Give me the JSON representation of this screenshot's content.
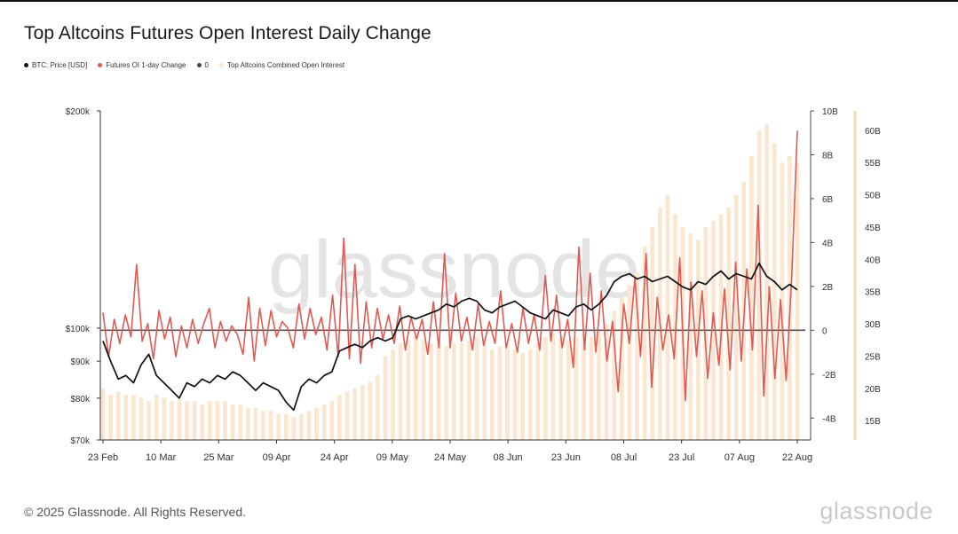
{
  "title": "Top Altcoins Futures Open Interest Daily Change",
  "legend": [
    {
      "label": "BTC: Price [USD]",
      "color": "#111111"
    },
    {
      "label": "Futures OI 1-day Change",
      "color": "#e05a55"
    },
    {
      "label": "0",
      "color": "#444444"
    },
    {
      "label": "Top Altcoins Combined Open Interest",
      "color": "#fbe6cf"
    }
  ],
  "watermark": "glassnode",
  "footer": "© 2025 Glassnode. All Rights Reserved.",
  "brand": "glassnode",
  "chart_data": {
    "type": "line",
    "title": "Top Altcoins Futures Open Interest Daily Change",
    "x_ticks": [
      "23 Feb",
      "10 Mar",
      "25 Mar",
      "09 Apr",
      "24 Apr",
      "09 May",
      "24 May",
      "08 Jun",
      "23 Jun",
      "08 Jul",
      "23 Jul",
      "07 Aug",
      "22 Aug"
    ],
    "y_left": {
      "label": "BTC: Price [USD]",
      "scale": "log",
      "ylim": [
        70000,
        200000
      ],
      "ticks": [
        "$70k",
        "$80k",
        "$90k",
        "$100k",
        "$200k"
      ],
      "tick_values": [
        70000,
        80000,
        90000,
        100000,
        200000
      ]
    },
    "y_right1": {
      "label": "Futures OI 1-day Change",
      "ylim": [
        -5,
        10
      ],
      "ticks": [
        "-4B",
        "-2B",
        "0",
        "2B",
        "4B",
        "6B",
        "8B",
        "10B"
      ],
      "tick_values": [
        -4,
        -2,
        0,
        2,
        4,
        6,
        8,
        10
      ]
    },
    "y_right2": {
      "label": "Top Altcoins Combined Open Interest",
      "ylim": [
        12,
        63
      ],
      "ticks": [
        "15B",
        "20B",
        "25B",
        "30B",
        "35B",
        "40B",
        "45B",
        "50B",
        "55B",
        "60B"
      ],
      "tick_values": [
        15,
        20,
        25,
        30,
        35,
        40,
        45,
        50,
        55,
        60
      ]
    },
    "series": [
      {
        "name": "BTC: Price [USD]",
        "axis": "left",
        "color": "#111111",
        "values": [
          96000,
          90000,
          85000,
          86000,
          84000,
          89000,
          92000,
          86000,
          84000,
          82000,
          80000,
          84000,
          83000,
          85000,
          84000,
          86000,
          85000,
          87000,
          86000,
          84000,
          82000,
          84000,
          83000,
          82000,
          79000,
          77000,
          83000,
          85000,
          84000,
          86000,
          87000,
          93000,
          94000,
          95000,
          94000,
          96000,
          97000,
          96000,
          97000,
          103000,
          104000,
          103000,
          104000,
          105000,
          106000,
          108000,
          107000,
          109000,
          110000,
          109000,
          106000,
          105000,
          107000,
          108000,
          109000,
          107000,
          105000,
          104000,
          103000,
          106000,
          105000,
          104000,
          107000,
          108000,
          106000,
          108000,
          111000,
          116000,
          118000,
          119000,
          117000,
          118000,
          116000,
          117000,
          118000,
          116000,
          114000,
          113000,
          116000,
          115000,
          118000,
          120000,
          117000,
          119000,
          118000,
          117000,
          123000,
          118000,
          116000,
          113000,
          115000,
          113000
        ]
      },
      {
        "name": "Futures OI 1-day Change",
        "axis": "right1",
        "color": "#e05a55",
        "values": [
          0.8,
          -1.2,
          0.5,
          -0.6,
          0.7,
          -0.3,
          3.0,
          -0.5,
          0.3,
          -1.3,
          0.9,
          -0.4,
          0.6,
          -1.2,
          0.2,
          -0.8,
          0.5,
          -0.6,
          0.3,
          1.0,
          -0.8,
          0.4,
          -0.5,
          0.2,
          -0.2,
          -1.1,
          1.5,
          -1.4,
          1.0,
          -0.7,
          0.9,
          -0.3,
          0.4,
          0.1,
          -0.8,
          1.2,
          -0.4,
          1.0,
          -0.2,
          0.6,
          -0.9,
          1.6,
          -1.2,
          4.2,
          -1.3,
          3.0,
          -1.5,
          1.3,
          -0.8,
          1.0,
          -0.4,
          0.7,
          -0.6,
          1.1,
          -0.9,
          0.6,
          -0.4,
          0.5,
          -1.1,
          1.3,
          -0.8,
          3.5,
          -0.8,
          1.7,
          -0.5,
          0.6,
          -0.9,
          1.2,
          -0.7,
          0.4,
          -0.6,
          1.8,
          -0.8,
          0.3,
          -1.0,
          1.0,
          -0.6,
          0.7,
          -0.9,
          2.5,
          -0.5,
          1.6,
          -0.8,
          0.5,
          -1.7,
          3.8,
          -0.9,
          2.6,
          -1.0,
          1.8,
          -1.4,
          0.4,
          -2.8,
          1.2,
          -0.6,
          2.4,
          -1.2,
          3.5,
          -2.6,
          1.5,
          -0.9,
          0.7,
          -1.3,
          3.3,
          -3.2,
          2.2,
          -1.2,
          1.8,
          -2.2,
          0.8,
          -1.6,
          1.9,
          -1.8,
          3.1,
          -1.4,
          2.8,
          -0.9,
          5.7,
          -3.0,
          2.0,
          -2.2,
          1.4,
          -2.3,
          2.4,
          9.1
        ]
      },
      {
        "name": "Top Altcoins Combined Open Interest",
        "axis": "right2",
        "color": "#fbe6cf",
        "values": [
          20,
          19,
          19.5,
          19,
          19,
          18.5,
          18,
          19,
          18.5,
          18,
          18.5,
          18,
          18,
          17.5,
          18,
          18,
          18,
          17.5,
          17.5,
          17,
          17,
          16.5,
          16.5,
          16,
          16,
          15.5,
          16,
          16.5,
          17,
          17.5,
          18,
          19,
          19.5,
          20,
          20.5,
          21,
          22,
          25,
          26,
          27,
          27.5,
          28,
          27.5,
          27,
          27,
          26.5,
          27,
          27,
          27.5,
          28,
          27,
          26,
          26.5,
          27,
          26,
          25.5,
          26,
          27,
          28,
          28.5,
          28,
          27.5,
          28,
          28.5,
          28,
          29,
          30,
          32,
          34,
          36,
          38,
          42,
          45,
          48,
          50,
          47,
          45,
          44,
          43,
          45,
          46,
          47,
          48,
          50,
          52,
          56,
          60,
          61,
          58,
          55,
          56,
          55
        ]
      }
    ]
  }
}
